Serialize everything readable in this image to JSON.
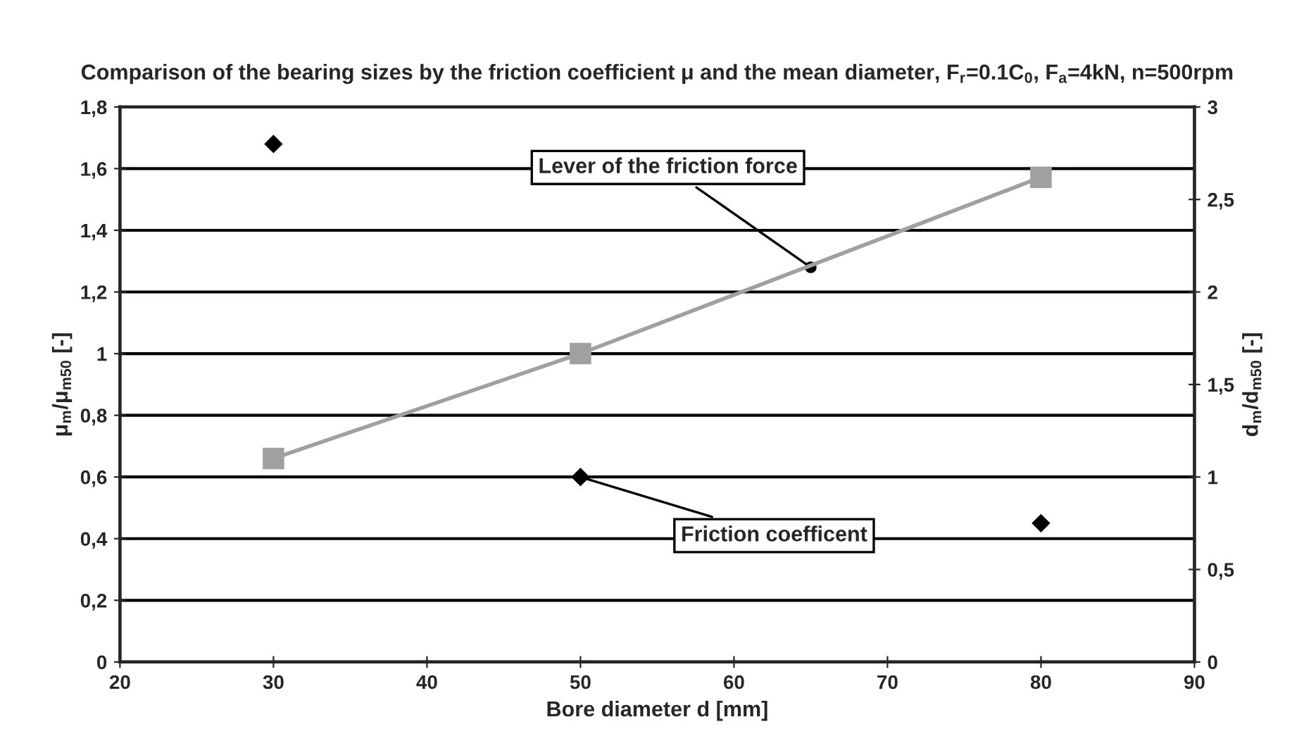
{
  "chart_data": {
    "type": "scatter",
    "title": "Comparison of the bearing sizes by the friction coefficient μ and the mean diameter, F$_{r}$=0.1C$_{0}$, F$_{a}$=4kN, n=500rpm",
    "xlabel": "Bore diameter d [mm]",
    "ylabel": "μ$_{m}$/μ$_{m50}$ [-]",
    "y2label": "d$_{m}$/d$_{m50}$ [-]",
    "series": [
      {
        "color": "#000000",
        "marker": "diamond",
        "x": [
          30,
          50,
          80
        ],
        "values": [
          1.68,
          0.6,
          0.45
        ]
      },
      {
        "type": "line",
        "axis": "y2",
        "color": "#a0a0a0",
        "marker": "square",
        "line_style": "solid",
        "x": [
          30,
          50,
          80
        ],
        "values": [
          1.1,
          1.667,
          2.62
        ]
      }
    ],
    "annotations": [
      {
        "text": "Lever of the friction force",
        "x": 65,
        "y": 1.28
      },
      {
        "text": "Friction coefficent",
        "x": 50,
        "y": 0.6
      }
    ],
    "xlim": [
      20,
      90
    ],
    "xticks": [
      20,
      30,
      40,
      50,
      60,
      70,
      80,
      90
    ],
    "ylim": [
      0,
      1.8
    ],
    "yticks": [
      0,
      {
        "value": 0.2,
        "label": "0,2"
      },
      {
        "value": 0.4,
        "label": "0,4"
      },
      {
        "value": 0.6,
        "label": "0,6"
      },
      {
        "value": 0.8,
        "label": "0,8"
      },
      1,
      {
        "value": 1.2,
        "label": "1,2"
      },
      {
        "value": 1.4,
        "label": "1,4"
      },
      {
        "value": 1.6,
        "label": "1,6"
      },
      {
        "value": 1.8,
        "label": "1,8"
      }
    ],
    "y2lim": [
      0,
      3
    ],
    "y2ticks": [
      0,
      {
        "value": 0.5,
        "label": "0,5"
      },
      1,
      {
        "value": 1.5,
        "label": "1,5"
      },
      2,
      {
        "value": 2.5,
        "label": "2,5"
      },
      3
    ],
    "grid": "y"
  }
}
